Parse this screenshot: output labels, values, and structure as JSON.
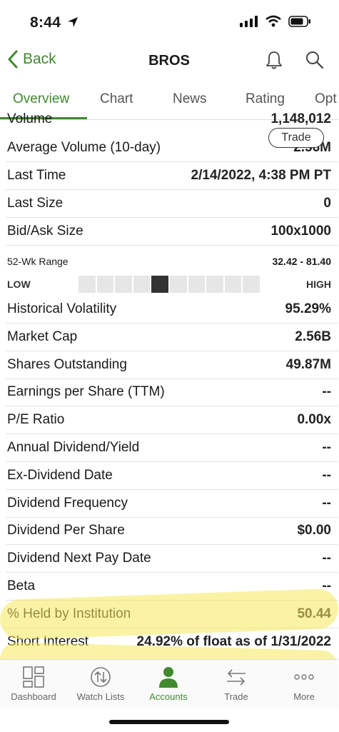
{
  "status_bar": {
    "time": "8:44"
  },
  "nav": {
    "back_label": "Back",
    "title": "BROS"
  },
  "tabs": [
    "Overview",
    "Chart",
    "News",
    "Rating",
    "Opt"
  ],
  "trade_button": "Trade",
  "rows_top": [
    {
      "label": "Volume",
      "value": "1,148,012"
    },
    {
      "label": "Average Volume (10-day)",
      "value": "2.56M"
    },
    {
      "label": "Last Time",
      "value": "2/14/2022, 4:38 PM PT"
    },
    {
      "label": "Last Size",
      "value": "0"
    },
    {
      "label": "Bid/Ask Size",
      "value": "100x1000"
    }
  ],
  "range": {
    "label": "52-Wk Range",
    "value": "32.42 - 81.40",
    "low_label": "LOW",
    "high_label": "HIGH",
    "segments": 10,
    "active_segment": 4
  },
  "rows_bottom": [
    {
      "label": "Historical Volatility",
      "value": "95.29%"
    },
    {
      "label": "Market Cap",
      "value": "2.56B"
    },
    {
      "label": "Shares Outstanding",
      "value": "49.87M"
    },
    {
      "label": "Earnings per Share (TTM)",
      "value": "--"
    },
    {
      "label": "P/E Ratio",
      "value": "0.00x"
    },
    {
      "label": "Annual Dividend/Yield",
      "value": "--"
    },
    {
      "label": "Ex-Dividend Date",
      "value": "--"
    },
    {
      "label": "Dividend Frequency",
      "value": "--"
    },
    {
      "label": "Dividend Per Share",
      "value": "$0.00"
    },
    {
      "label": "Dividend Next Pay Date",
      "value": "--"
    },
    {
      "label": "Beta",
      "value": "--"
    },
    {
      "label": "% Held by Institution",
      "value": "50.44"
    },
    {
      "label": "Short Interest",
      "value": "24.92% of float as of 1/31/2022"
    }
  ],
  "bottom_nav": [
    {
      "label": "Dashboard",
      "icon": "dashboard-icon"
    },
    {
      "label": "Watch Lists",
      "icon": "watchlist-icon"
    },
    {
      "label": "Accounts",
      "icon": "accounts-icon",
      "active": true
    },
    {
      "label": "Trade",
      "icon": "trade-arrows-icon"
    },
    {
      "label": "More",
      "icon": "more-dots-icon"
    }
  ],
  "colors": {
    "accent": "#3f8a2c",
    "highlight": "#f5ea5a"
  }
}
